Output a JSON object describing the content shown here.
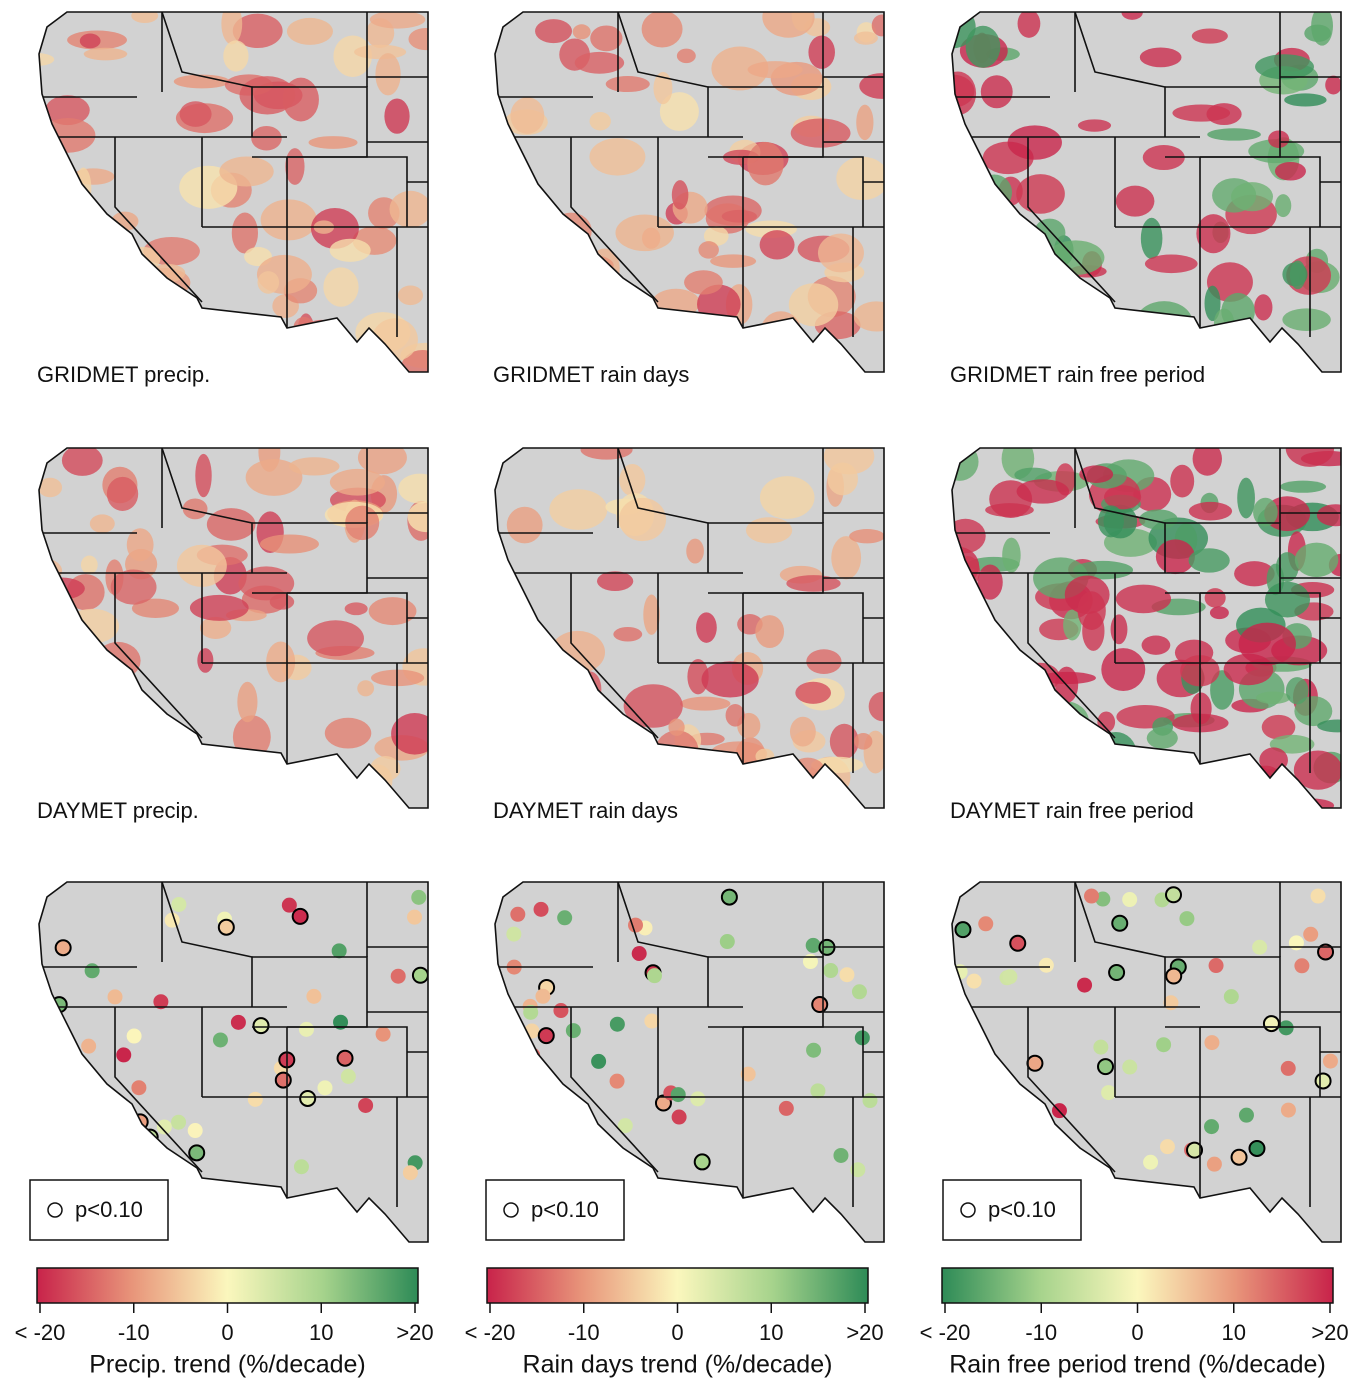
{
  "panels": [
    {
      "label": "GRIDMET precip."
    },
    {
      "label": "GRIDMET rain days"
    },
    {
      "label": "GRIDMET rain free period"
    },
    {
      "label": "DAYMET precip."
    },
    {
      "label": "DAYMET rain days"
    },
    {
      "label": "DAYMET rain free period"
    }
  ],
  "legend_label": "p<0.10",
  "colorbars": [
    {
      "title": "Precip. trend (%/decade)",
      "xlim": [
        -20,
        20
      ],
      "xticks": [
        {
          "value": -20,
          "label": "< -20"
        },
        -10,
        0,
        10,
        {
          "value": 20,
          "label": ">20"
        }
      ],
      "colors": [
        "#c8234a",
        "#e8957a",
        "#fbf7bd",
        "#a6d38c",
        "#2e8b57"
      ]
    },
    {
      "title": "Rain days trend (%/decade)",
      "xlim": [
        -20,
        20
      ],
      "xticks": [
        {
          "value": -20,
          "label": "< -20"
        },
        -10,
        0,
        10,
        {
          "value": 20,
          "label": ">20"
        }
      ],
      "colors": [
        "#c8234a",
        "#e8957a",
        "#fbf7bd",
        "#a6d38c",
        "#2e8b57"
      ]
    },
    {
      "title": "Rain free period trend (%/decade)",
      "xlim": [
        -20,
        20
      ],
      "xticks": [
        {
          "value": -20,
          "label": "< -20"
        },
        -10,
        0,
        10,
        {
          "value": 20,
          "label": ">20"
        }
      ],
      "colors": [
        "#2e8b57",
        "#a6d38c",
        "#fbf7bd",
        "#e8957a",
        "#c8234a"
      ]
    }
  ]
}
